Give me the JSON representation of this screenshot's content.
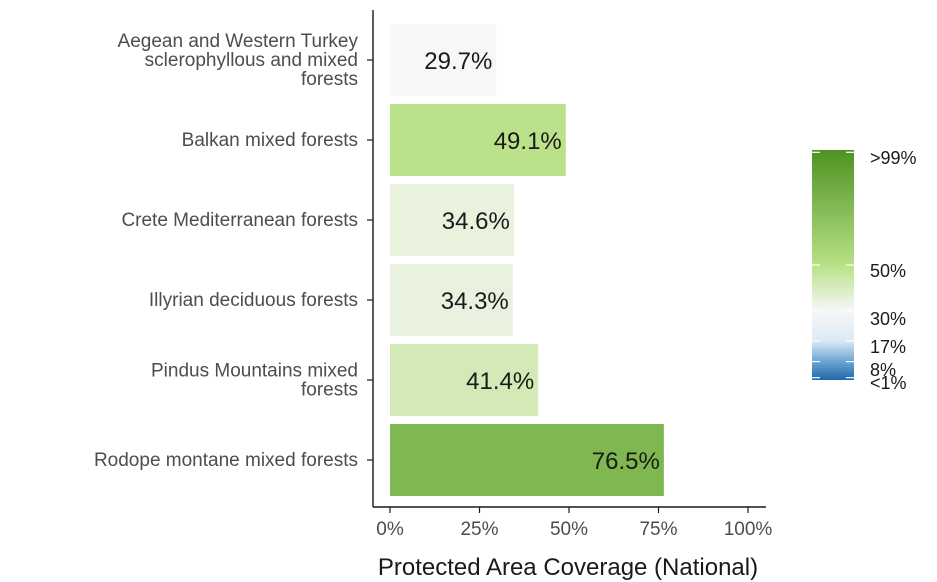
{
  "chart_data": {
    "type": "bar",
    "orientation": "horizontal",
    "categories": [
      [
        "Aegean and Western Turkey",
        "sclerophyllous and mixed",
        "forests"
      ],
      [
        "Balkan mixed forests"
      ],
      [
        "Crete Mediterranean forests"
      ],
      [
        "Illyrian deciduous forests"
      ],
      [
        "Pindus Mountains mixed",
        "forests"
      ],
      [
        "Rodope montane mixed forests"
      ]
    ],
    "values": [
      29.7,
      49.1,
      34.6,
      34.3,
      41.4,
      76.5
    ],
    "value_labels": [
      "29.7%",
      "49.1%",
      "34.6%",
      "34.3%",
      "41.4%",
      "76.5%"
    ],
    "xlabel": "Protected Area Coverage (National)",
    "ylabel": "",
    "xlim": [
      0,
      100
    ],
    "xticks": [
      0,
      25,
      50,
      75,
      100
    ],
    "xtick_labels": [
      "0%",
      "25%",
      "50%",
      "75%",
      "100%"
    ],
    "grid": false,
    "legend": {
      "type": "colorbar",
      "placement": "right",
      "breaks": [
        1,
        8,
        17,
        30,
        50,
        99
      ],
      "labels": [
        "<1%",
        "8%",
        "17%",
        "30%",
        "50%",
        ">99%"
      ],
      "stops": [
        {
          "value": 0,
          "color": "#2166ac"
        },
        {
          "value": 8,
          "color": "#6aa6d1"
        },
        {
          "value": 17,
          "color": "#dce9f4"
        },
        {
          "value": 30,
          "color": "#f7f7f7"
        },
        {
          "value": 50,
          "color": "#b8e186"
        },
        {
          "value": 100,
          "color": "#4d9221"
        }
      ]
    }
  }
}
